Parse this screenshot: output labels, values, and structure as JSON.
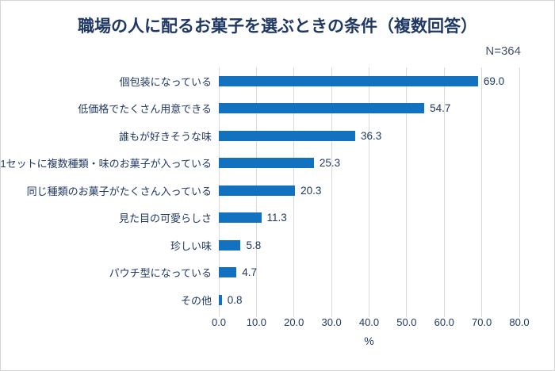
{
  "header": {
    "title": "職場の人に配るお菓子を選ぶときの条件（複数回答）",
    "sample_size_label": "N=364"
  },
  "colors": {
    "background": "#FFFFFF",
    "frame_border": "#D4D4D4",
    "bar": "#1272BF",
    "title_text": "#1F3864",
    "label_text": "#203864",
    "value_text": "#203864",
    "tick_text": "#203864",
    "n_text": "#44546A",
    "gridline": "#D9D9D9"
  },
  "chart_data": {
    "type": "bar",
    "orientation": "horizontal",
    "title": "職場の人に配るお菓子を選ぶときの条件（複数回答）",
    "sample_size": "N=364",
    "categories": [
      "個包装になっている",
      "低価格でたくさん用意できる",
      "誰もが好きそうな味",
      "1セットに複数種類・味のお菓子が入っている",
      "同じ種類のお菓子がたくさん入っている",
      "見た目の可愛らしさ",
      "珍しい味",
      "パウチ型になっている",
      "その他"
    ],
    "values": [
      69.0,
      54.7,
      36.3,
      25.3,
      20.3,
      11.3,
      5.8,
      4.7,
      0.8
    ],
    "value_labels": [
      "69.0",
      "54.7",
      "36.3",
      "25.3",
      "20.3",
      "11.3",
      "5.8",
      "4.7",
      "0.8"
    ],
    "xlabel": "%",
    "xlim": [
      0,
      80
    ],
    "xticks": [
      0,
      10,
      20,
      30,
      40,
      50,
      60,
      70,
      80
    ],
    "xtick_labels": [
      "0.0",
      "10.0",
      "20.0",
      "30.0",
      "40.0",
      "50.0",
      "60.0",
      "70.0",
      "80.0"
    ],
    "grid": "vertical",
    "legend": "none",
    "data_labels": "outside-end"
  }
}
